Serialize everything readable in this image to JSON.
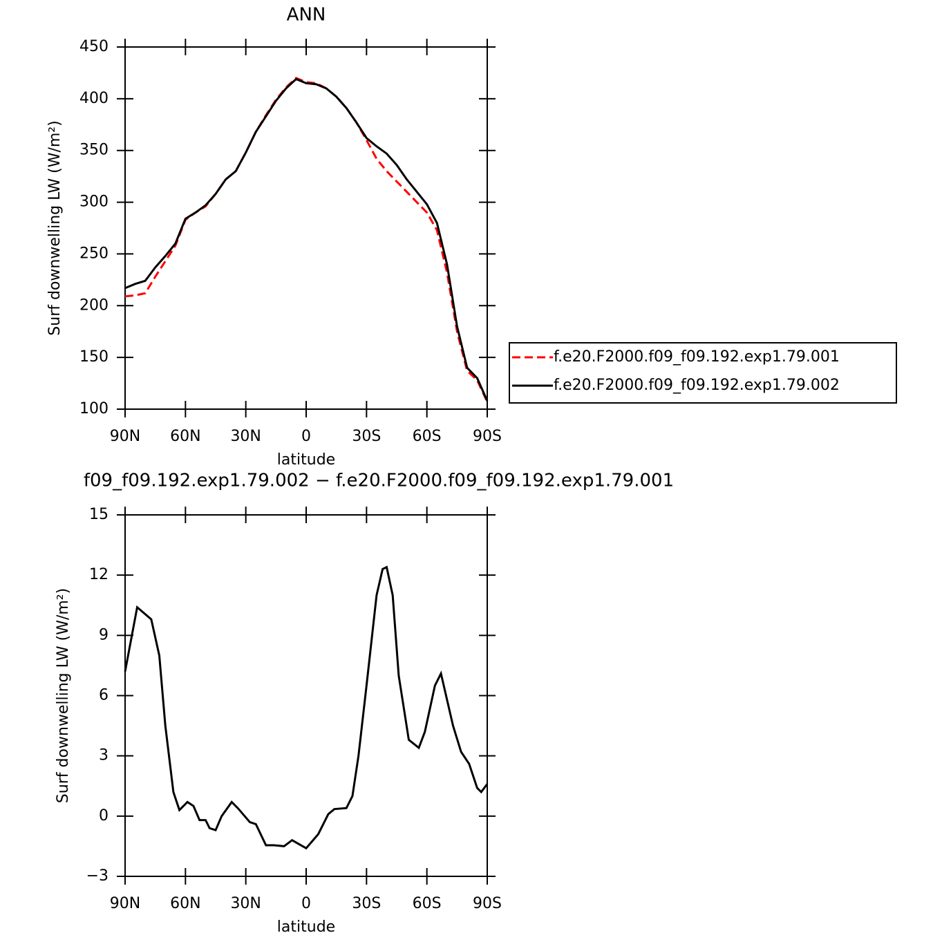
{
  "chart_data": [
    {
      "type": "line",
      "title": "ANN",
      "x_label": "latitude",
      "y_label": "Surf  downwelling LW (W/m²)",
      "x": [
        90,
        85,
        80,
        75,
        70,
        65,
        60,
        55,
        50,
        45,
        40,
        35,
        30,
        25,
        20,
        15,
        10,
        5,
        0,
        -5,
        -10,
        -15,
        -20,
        -25,
        -30,
        -35,
        -40,
        -45,
        -50,
        -55,
        -60,
        -65,
        -70,
        -75,
        -80,
        -85,
        -90
      ],
      "series": [
        {
          "name": "f.e20.F2000.f09_f09.192.exp1.79.001",
          "color": "#ff0000",
          "linestyle": "dashed",
          "values": [
            209,
            210,
            212,
            228,
            243,
            258,
            283,
            290,
            296,
            308,
            322,
            330,
            348,
            368,
            384,
            399,
            411,
            420,
            416,
            415,
            410,
            402,
            391,
            377,
            360,
            342,
            330,
            320,
            310,
            300,
            290,
            273,
            232,
            175,
            137,
            128,
            107
          ]
        },
        {
          "name": "f.e20.F2000.f09_f09.192.exp1.79.002",
          "color": "#000000",
          "linestyle": "solid",
          "values": [
            217,
            221,
            224,
            237,
            248,
            260,
            284,
            290,
            297,
            308,
            322,
            330,
            348,
            368,
            383,
            398,
            410,
            419,
            415,
            414,
            410,
            402,
            391,
            377,
            362,
            354,
            347,
            336,
            322,
            310,
            298,
            280,
            240,
            180,
            140,
            130,
            108
          ]
        }
      ],
      "xlim": [
        90,
        -90
      ],
      "xticks": [
        {
          "value": 90,
          "label": "90N"
        },
        {
          "value": 60,
          "label": "60N"
        },
        {
          "value": 30,
          "label": "30N"
        },
        0,
        {
          "value": -30,
          "label": "30S"
        },
        {
          "value": -60,
          "label": "60S"
        },
        {
          "value": -90,
          "label": "90S"
        }
      ],
      "ylim": [
        100,
        450
      ],
      "yticks": [
        100,
        150,
        200,
        250,
        300,
        350,
        400,
        450
      ],
      "legend": "right"
    },
    {
      "type": "line",
      "title": "f09_f09.192.exp1.79.002 − f.e20.F2000.f09_f09.192.exp1.79.001",
      "x_label": "latitude",
      "y_label": "Surf  downwelling LW (W/m²)",
      "x": [
        90,
        84,
        77,
        73,
        70,
        66,
        63,
        59,
        56,
        53,
        50,
        48,
        45,
        42,
        37,
        34,
        28,
        25,
        20,
        16,
        11,
        7,
        0,
        -6,
        -11,
        -14,
        -20,
        -23,
        -26,
        -30,
        -35,
        -38,
        -40,
        -43,
        -46,
        -51,
        -56,
        -59,
        -64,
        -67,
        -73,
        -77,
        -81,
        -85,
        -87,
        -90
      ],
      "series": [
        {
          "color": "#000000",
          "linestyle": "solid",
          "values": [
            7.2,
            10.4,
            9.8,
            8,
            4.5,
            1.2,
            0.3,
            0.7,
            0.5,
            -0.2,
            -0.2,
            -0.6,
            -0.7,
            0,
            0.7,
            0.4,
            -0.3,
            -0.4,
            -1.45,
            -1.45,
            -1.5,
            -1.2,
            -1.6,
            -0.9,
            0.1,
            0.35,
            0.4,
            1,
            3,
            6.5,
            11,
            12.3,
            12.4,
            11,
            7,
            3.8,
            3.4,
            4.2,
            6.5,
            7.1,
            4.5,
            3.2,
            2.6,
            1.4,
            1.2,
            1.6
          ]
        }
      ],
      "xlim": [
        90,
        -90
      ],
      "xticks": [
        {
          "value": 90,
          "label": "90N"
        },
        {
          "value": 60,
          "label": "60N"
        },
        {
          "value": 30,
          "label": "30N"
        },
        0,
        {
          "value": -30,
          "label": "30S"
        },
        {
          "value": -60,
          "label": "60S"
        },
        {
          "value": -90,
          "label": "90S"
        }
      ],
      "ylim": [
        -3,
        15
      ],
      "yticks": [
        {
          "value": -3,
          "label": "−3"
        },
        0,
        3,
        6,
        9,
        12,
        15
      ]
    }
  ]
}
